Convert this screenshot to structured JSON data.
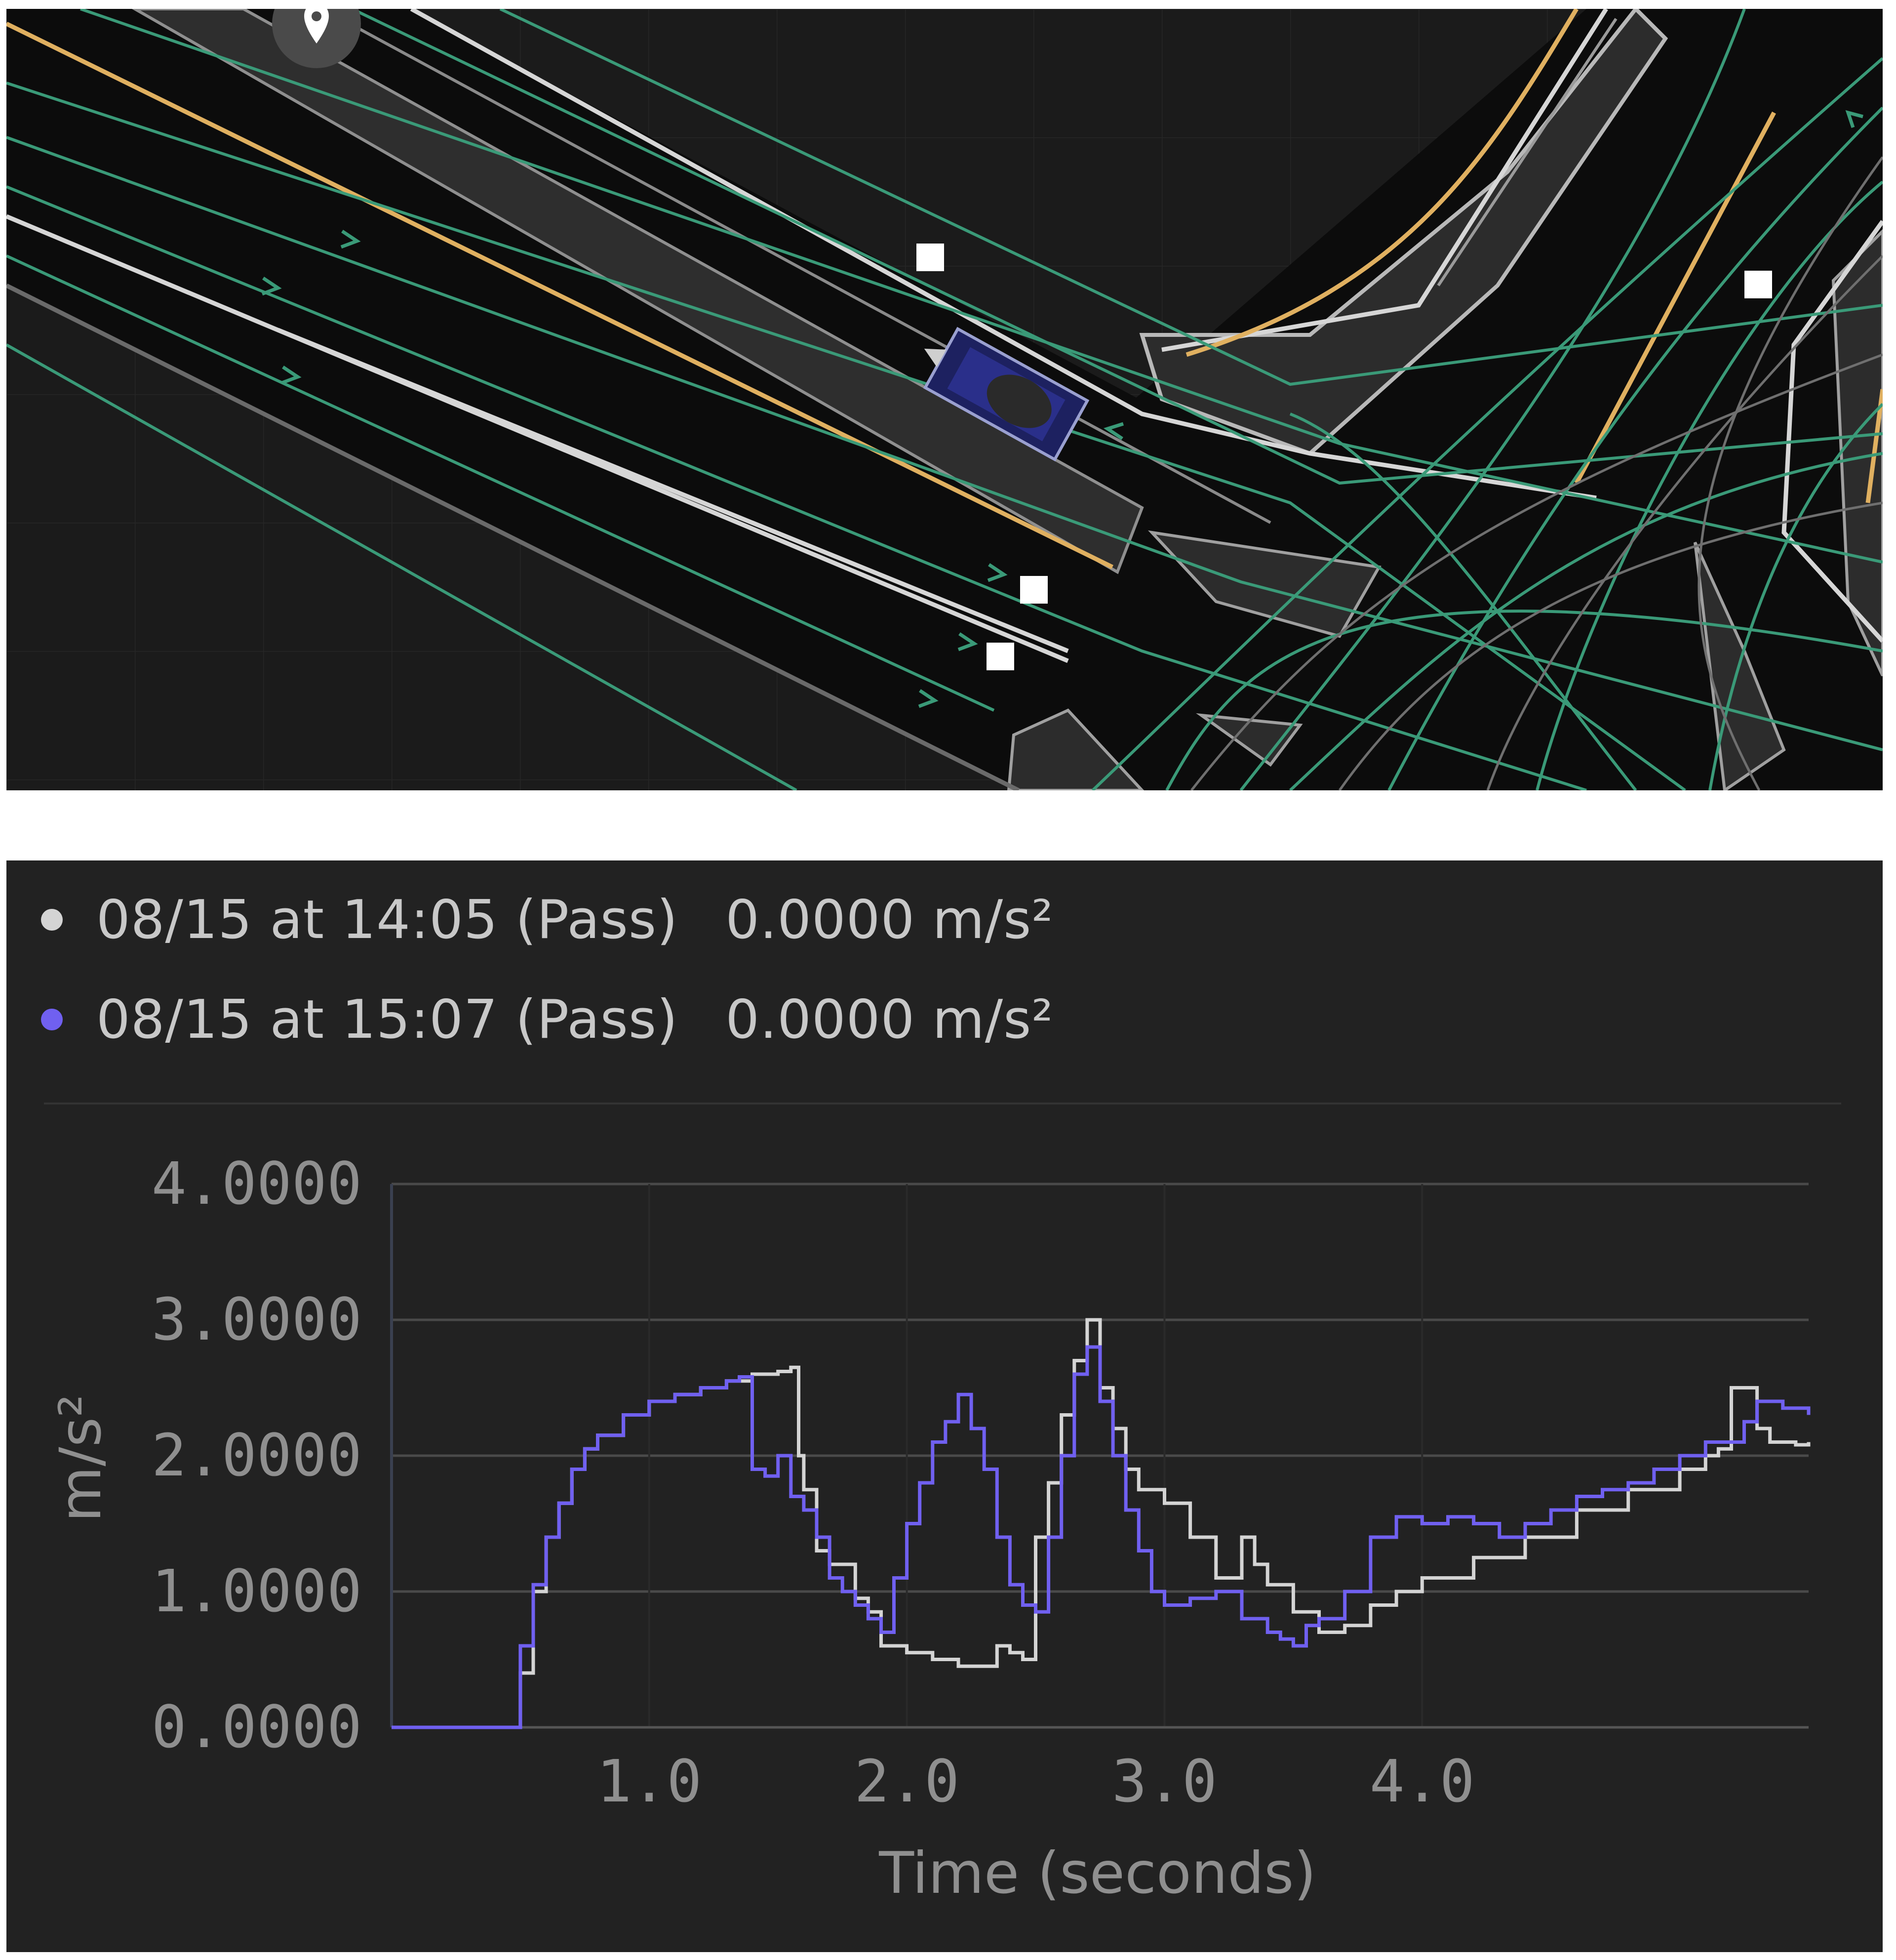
{
  "colors": {
    "series_a": "#d4d4d4",
    "series_b": "#7060f0",
    "lane_green": "#3a9a78",
    "lane_yellow": "#e0b060",
    "panel_bg": "#222222"
  },
  "map": {
    "icons": [
      "map-pin-icon",
      "ego-vehicle-icon",
      "waypoint-marker-icon"
    ]
  },
  "legend": [
    {
      "label": "08/15 at 14:05 (Pass)",
      "value": "0.0000 m/s²",
      "color": "#d4d4d4"
    },
    {
      "label": "08/15 at 15:07 (Pass)",
      "value": "0.0000 m/s²",
      "color": "#7060f0"
    }
  ],
  "chart_data": {
    "type": "line",
    "xlabel": "Time (seconds)",
    "ylabel": "m/s²",
    "xlim": [
      0,
      5.5
    ],
    "ylim": [
      0,
      4
    ],
    "x_ticks": [
      1,
      2,
      3,
      4
    ],
    "x_tick_labels": [
      "1.0",
      "2.0",
      "3.0",
      "4.0"
    ],
    "y_ticks": [
      0,
      1,
      2,
      3,
      4
    ],
    "y_tick_labels": [
      "0.0000",
      "1.0000",
      "2.0000",
      "3.0000",
      "4.0000"
    ],
    "grid": "horizontal",
    "step": true,
    "series": [
      {
        "name": "08/15 at 14:05 (Pass)",
        "color": "#d4d4d4",
        "points": [
          [
            0,
            0
          ],
          [
            0.48,
            0
          ],
          [
            0.5,
            0.4
          ],
          [
            0.55,
            1.0
          ],
          [
            0.6,
            1.4
          ],
          [
            0.65,
            1.65
          ],
          [
            0.7,
            1.9
          ],
          [
            0.75,
            2.05
          ],
          [
            0.8,
            2.15
          ],
          [
            0.9,
            2.3
          ],
          [
            1.0,
            2.4
          ],
          [
            1.1,
            2.45
          ],
          [
            1.2,
            2.5
          ],
          [
            1.3,
            2.55
          ],
          [
            1.4,
            2.6
          ],
          [
            1.5,
            2.62
          ],
          [
            1.55,
            2.65
          ],
          [
            1.58,
            2.0
          ],
          [
            1.6,
            1.75
          ],
          [
            1.65,
            1.3
          ],
          [
            1.7,
            1.2
          ],
          [
            1.8,
            0.95
          ],
          [
            1.85,
            0.85
          ],
          [
            1.9,
            0.6
          ],
          [
            2.0,
            0.55
          ],
          [
            2.1,
            0.5
          ],
          [
            2.2,
            0.45
          ],
          [
            2.3,
            0.45
          ],
          [
            2.35,
            0.6
          ],
          [
            2.4,
            0.55
          ],
          [
            2.45,
            0.5
          ],
          [
            2.5,
            1.4
          ],
          [
            2.55,
            1.8
          ],
          [
            2.6,
            2.3
          ],
          [
            2.65,
            2.7
          ],
          [
            2.7,
            3.0
          ],
          [
            2.75,
            2.5
          ],
          [
            2.8,
            2.2
          ],
          [
            2.85,
            1.9
          ],
          [
            2.9,
            1.75
          ],
          [
            3.0,
            1.65
          ],
          [
            3.1,
            1.4
          ],
          [
            3.2,
            1.1
          ],
          [
            3.3,
            1.4
          ],
          [
            3.35,
            1.2
          ],
          [
            3.4,
            1.05
          ],
          [
            3.5,
            0.85
          ],
          [
            3.6,
            0.7
          ],
          [
            3.7,
            0.75
          ],
          [
            3.8,
            0.9
          ],
          [
            3.9,
            1.0
          ],
          [
            4.0,
            1.1
          ],
          [
            4.2,
            1.25
          ],
          [
            4.4,
            1.4
          ],
          [
            4.6,
            1.6
          ],
          [
            4.8,
            1.75
          ],
          [
            5.0,
            1.9
          ],
          [
            5.1,
            2.0
          ],
          [
            5.15,
            2.05
          ],
          [
            5.2,
            2.5
          ],
          [
            5.3,
            2.2
          ],
          [
            5.35,
            2.1
          ],
          [
            5.45,
            2.08
          ],
          [
            5.5,
            2.1
          ]
        ]
      },
      {
        "name": "08/15 at 15:07 (Pass)",
        "color": "#7060f0",
        "points": [
          [
            0,
            0
          ],
          [
            0.48,
            0
          ],
          [
            0.5,
            0.6
          ],
          [
            0.55,
            1.05
          ],
          [
            0.6,
            1.4
          ],
          [
            0.65,
            1.65
          ],
          [
            0.7,
            1.9
          ],
          [
            0.75,
            2.05
          ],
          [
            0.8,
            2.15
          ],
          [
            0.9,
            2.3
          ],
          [
            1.0,
            2.4
          ],
          [
            1.1,
            2.45
          ],
          [
            1.2,
            2.5
          ],
          [
            1.3,
            2.55
          ],
          [
            1.35,
            2.58
          ],
          [
            1.4,
            1.9
          ],
          [
            1.45,
            1.85
          ],
          [
            1.5,
            2.0
          ],
          [
            1.55,
            1.7
          ],
          [
            1.6,
            1.6
          ],
          [
            1.65,
            1.4
          ],
          [
            1.7,
            1.1
          ],
          [
            1.75,
            1.0
          ],
          [
            1.8,
            0.9
          ],
          [
            1.85,
            0.8
          ],
          [
            1.9,
            0.7
          ],
          [
            1.95,
            1.1
          ],
          [
            2.0,
            1.5
          ],
          [
            2.05,
            1.8
          ],
          [
            2.1,
            2.1
          ],
          [
            2.15,
            2.25
          ],
          [
            2.2,
            2.45
          ],
          [
            2.25,
            2.2
          ],
          [
            2.3,
            1.9
          ],
          [
            2.35,
            1.4
          ],
          [
            2.4,
            1.05
          ],
          [
            2.45,
            0.9
          ],
          [
            2.5,
            0.85
          ],
          [
            2.55,
            1.4
          ],
          [
            2.6,
            2.0
          ],
          [
            2.65,
            2.6
          ],
          [
            2.7,
            2.8
          ],
          [
            2.75,
            2.4
          ],
          [
            2.8,
            2.0
          ],
          [
            2.85,
            1.6
          ],
          [
            2.9,
            1.3
          ],
          [
            2.95,
            1.0
          ],
          [
            3.0,
            0.9
          ],
          [
            3.1,
            0.95
          ],
          [
            3.2,
            1.0
          ],
          [
            3.3,
            0.8
          ],
          [
            3.4,
            0.7
          ],
          [
            3.45,
            0.65
          ],
          [
            3.5,
            0.6
          ],
          [
            3.55,
            0.75
          ],
          [
            3.6,
            0.8
          ],
          [
            3.7,
            1.0
          ],
          [
            3.8,
            1.4
          ],
          [
            3.9,
            1.55
          ],
          [
            4.0,
            1.5
          ],
          [
            4.1,
            1.55
          ],
          [
            4.2,
            1.5
          ],
          [
            4.3,
            1.4
          ],
          [
            4.4,
            1.5
          ],
          [
            4.5,
            1.6
          ],
          [
            4.6,
            1.7
          ],
          [
            4.7,
            1.75
          ],
          [
            4.8,
            1.8
          ],
          [
            4.9,
            1.9
          ],
          [
            5.0,
            2.0
          ],
          [
            5.1,
            2.1
          ],
          [
            5.2,
            2.1
          ],
          [
            5.25,
            2.25
          ],
          [
            5.3,
            2.4
          ],
          [
            5.4,
            2.35
          ],
          [
            5.5,
            2.3
          ]
        ]
      }
    ]
  }
}
